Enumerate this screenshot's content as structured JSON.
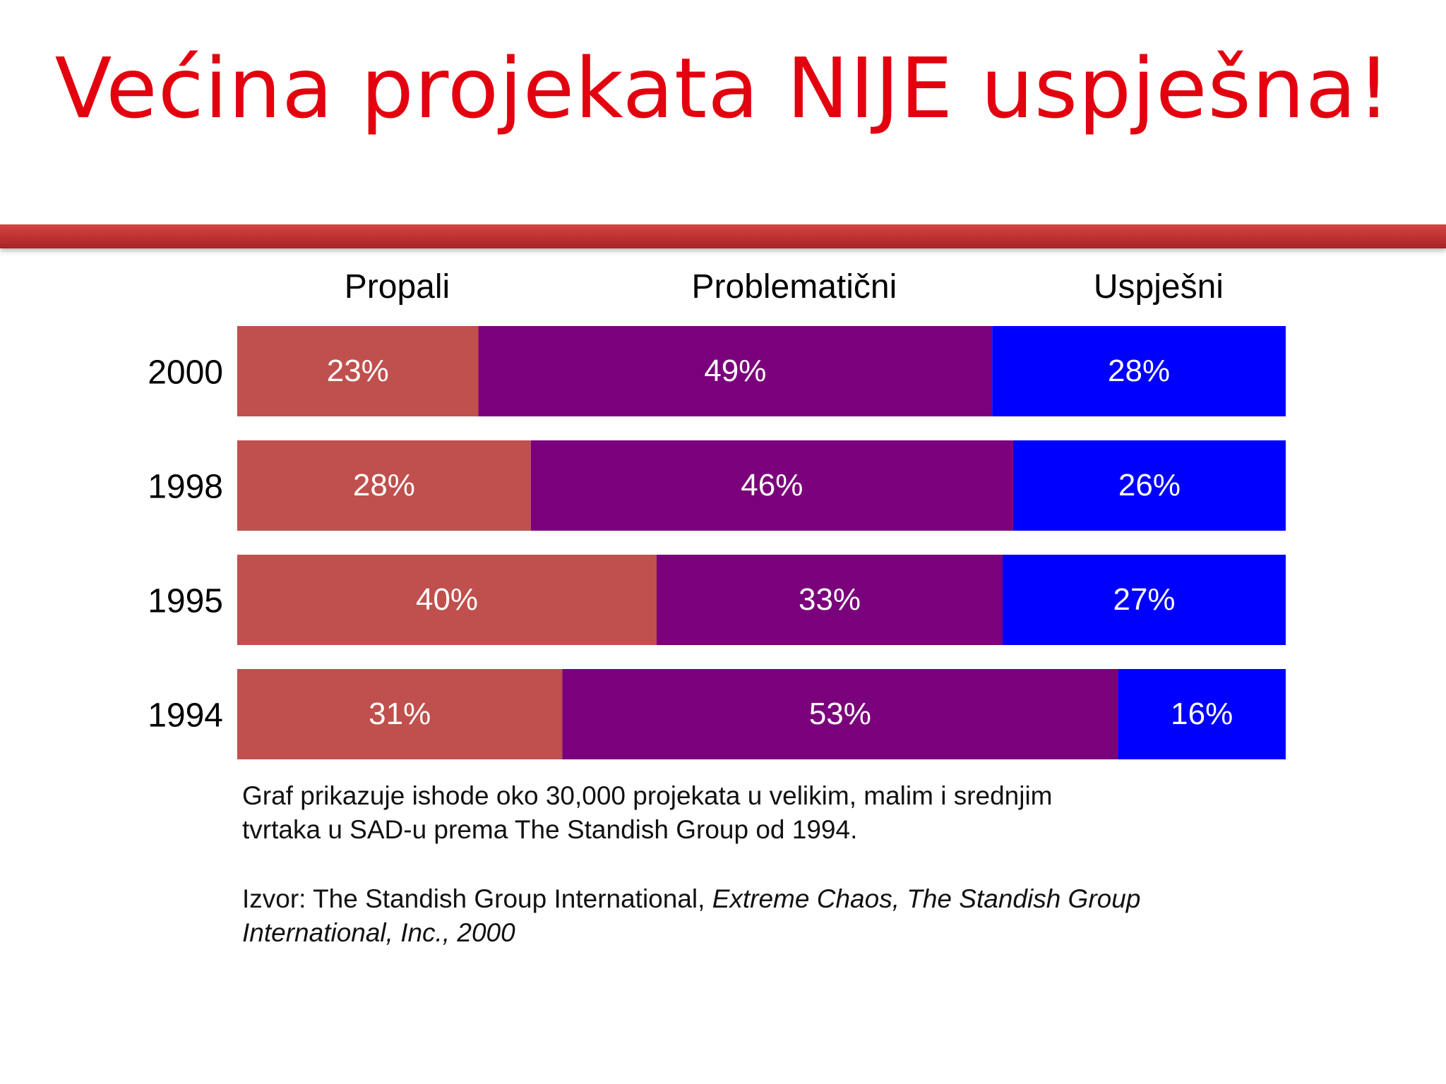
{
  "title": "Većina projekata NIJE uspješna!",
  "colors": {
    "title": "#e3000f",
    "divider": "#c23232",
    "propali": "#c0504d",
    "problematicni": "#7b007b",
    "uspjesni": "#0000ff",
    "segment_label": "#ffffff",
    "axis_label": "#000000"
  },
  "chart_data": {
    "type": "bar",
    "orientation": "horizontal",
    "stacked": true,
    "percent": true,
    "categories": [
      "2000",
      "1998",
      "1995",
      "1994"
    ],
    "series": [
      {
        "name": "Propali",
        "color": "#c0504d",
        "values": [
          23,
          28,
          40,
          31
        ],
        "labels": [
          "23%",
          "28%",
          "40%",
          "31%"
        ]
      },
      {
        "name": "Problematični",
        "color": "#7b007b",
        "values": [
          49,
          46,
          33,
          53
        ],
        "labels": [
          "49%",
          "46%",
          "33%",
          "53%"
        ]
      },
      {
        "name": "Uspješni",
        "color": "#0000ff",
        "values": [
          28,
          26,
          27,
          16
        ],
        "labels": [
          "28%",
          "26%",
          "27%",
          "16%"
        ]
      }
    ],
    "xlim": [
      0,
      100
    ],
    "grid": false,
    "legend_position": "top"
  },
  "footnote": {
    "description": "Graf prikazuje ishode oko 30,000 projekata u velikim, malim i srednjim\n tvrtaka u SAD-u prema The Standish Group od 1994.",
    "source_prefix": "Izvor: The Standish Group International, ",
    "source_title": "Extreme Chaos, The Standish Group\nInternational, Inc., 2000"
  }
}
